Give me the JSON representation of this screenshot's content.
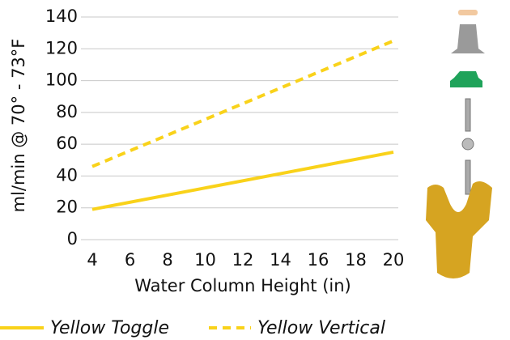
{
  "chart_data": {
    "type": "line",
    "x": [
      4,
      20
    ],
    "series": [
      {
        "name": "Yellow Toggle",
        "color": "#f9d21a",
        "dash": false,
        "values": [
          19,
          55
        ]
      },
      {
        "name": "Yellow Vertical",
        "color": "#f9d21a",
        "dash": true,
        "values": [
          46,
          125
        ]
      }
    ],
    "xlabel": "Water Column Height (in)",
    "ylabel": "ml/min @ 70° - 73°F",
    "xlim": [
      4,
      20
    ],
    "xticks": [
      4,
      6,
      8,
      10,
      12,
      14,
      16,
      18,
      20
    ],
    "ylim": [
      0,
      140
    ],
    "yticks": [
      0,
      20,
      40,
      60,
      80,
      100,
      120,
      140
    ],
    "grid": true
  }
}
